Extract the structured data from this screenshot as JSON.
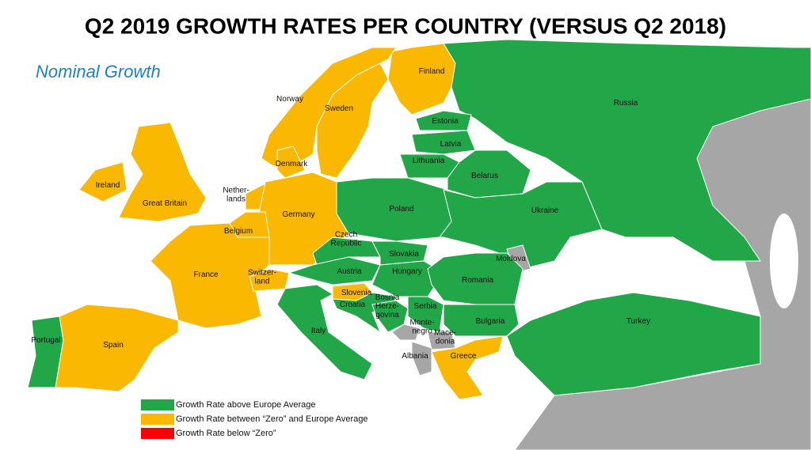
{
  "title": "Q2 2019 GROWTH RATES PER COUNTRY (VERSUS Q2 2018)",
  "subtitle": "Nominal Growth",
  "legend": [
    {
      "label": "Growth Rate above Europe Average",
      "color": "#21a648"
    },
    {
      "label": "Growth Rate between “Zero” and Europe Average",
      "color": "#fbb800"
    },
    {
      "label": "Growth Rate below “Zero”",
      "color": "#ff0000"
    }
  ],
  "countries": [
    {
      "label": [
        "Finland"
      ],
      "color": "#fbb800"
    },
    {
      "label": [
        "Norway"
      ],
      "color": "#fbb800"
    },
    {
      "label": [
        "Sweden"
      ],
      "color": "#fbb800"
    },
    {
      "label": [
        "Russia"
      ],
      "color": "#21a648"
    },
    {
      "label": [
        "Estonia"
      ],
      "color": "#21a648"
    },
    {
      "label": [
        "Latvia"
      ],
      "color": "#21a648"
    },
    {
      "label": [
        "Lithuania"
      ],
      "color": "#21a648"
    },
    {
      "label": [
        "Denmark"
      ],
      "color": "#fbb800"
    },
    {
      "label": [
        "Ireland"
      ],
      "color": "#fbb800"
    },
    {
      "label": [
        "Great Britain"
      ],
      "color": "#fbb800"
    },
    {
      "label": [
        "Nether-",
        "lands"
      ],
      "color": "#fbb800"
    },
    {
      "label": [
        "Belarus"
      ],
      "color": "#21a648"
    },
    {
      "label": [
        "Germany"
      ],
      "color": "#fbb800"
    },
    {
      "label": [
        "Poland"
      ],
      "color": "#21a648"
    },
    {
      "label": [
        "Ukraine"
      ],
      "color": "#21a648"
    },
    {
      "label": [
        "Belgium"
      ],
      "color": "#fbb800"
    },
    {
      "label": [
        "Czech",
        "Republic"
      ],
      "color": "#21a648"
    },
    {
      "label": [
        "Slovakia"
      ],
      "color": "#21a648"
    },
    {
      "label": [
        "Moldova"
      ],
      "color": "#a6a6a6"
    },
    {
      "label": [
        "France"
      ],
      "color": "#fbb800"
    },
    {
      "label": [
        "Switzer-",
        "land"
      ],
      "color": "#fbb800"
    },
    {
      "label": [
        "Austria"
      ],
      "color": "#21a648"
    },
    {
      "label": [
        "Hungary"
      ],
      "color": "#21a648"
    },
    {
      "label": [
        "Romania"
      ],
      "color": "#21a648"
    },
    {
      "label": [
        "Slovenia"
      ],
      "color": "#fbb800"
    },
    {
      "label": [
        "Croatia"
      ],
      "color": "#21a648"
    },
    {
      "label": [
        "Bosnia",
        "Herze-",
        "govina"
      ],
      "color": "#21a648"
    },
    {
      "label": [
        "Serbia"
      ],
      "color": "#21a648"
    },
    {
      "label": [
        "Monte-",
        "negro"
      ],
      "color": "#a6a6a6"
    },
    {
      "label": [
        "Mace-",
        "donia"
      ],
      "color": "#a6a6a6"
    },
    {
      "label": [
        "Bulgaria"
      ],
      "color": "#21a648"
    },
    {
      "label": [
        "Turkey"
      ],
      "color": "#21a648"
    },
    {
      "label": [
        "Portugal"
      ],
      "color": "#21a648"
    },
    {
      "label": [
        "Spain"
      ],
      "color": "#fbb800"
    },
    {
      "label": [
        "Italy"
      ],
      "color": "#21a648"
    },
    {
      "label": [
        "Albania"
      ],
      "color": "#a6a6a6"
    },
    {
      "label": [
        "Greece"
      ],
      "color": "#fbb800"
    }
  ]
}
